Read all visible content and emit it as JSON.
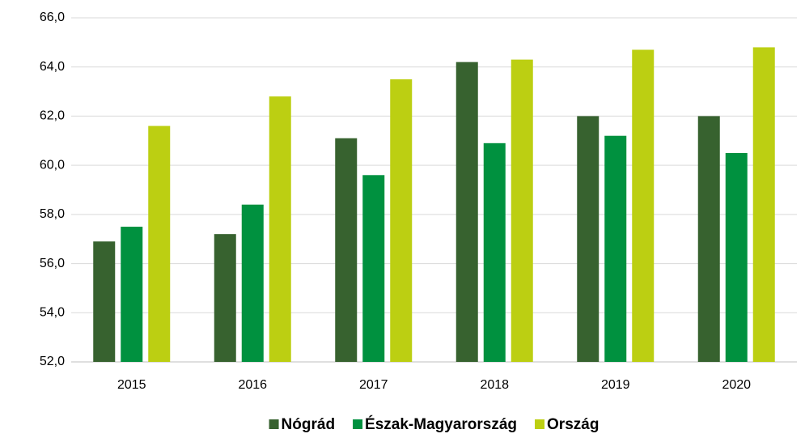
{
  "chart_data": {
    "type": "bar",
    "categories": [
      "2015",
      "2016",
      "2017",
      "2018",
      "2019",
      "2020"
    ],
    "series": [
      {
        "name": "Nógrád",
        "color": "#37622f",
        "values": [
          56.9,
          57.2,
          61.1,
          64.2,
          62.0,
          62.0
        ]
      },
      {
        "name": "Észak-Magyarország",
        "color": "#00913f",
        "values": [
          57.5,
          58.4,
          59.6,
          60.9,
          61.2,
          60.5
        ]
      },
      {
        "name": "Ország",
        "color": "#bccf12",
        "values": [
          61.6,
          62.8,
          63.5,
          64.3,
          64.7,
          64.8
        ]
      }
    ],
    "ylim": [
      52,
      66
    ],
    "yticks": [
      {
        "value": 52,
        "label": "52,0"
      },
      {
        "value": 54,
        "label": "54,0"
      },
      {
        "value": 56,
        "label": "56,0"
      },
      {
        "value": 58,
        "label": "58,0"
      },
      {
        "value": 60,
        "label": "60,0"
      },
      {
        "value": 62,
        "label": "62,0"
      },
      {
        "value": 64,
        "label": "64,0"
      },
      {
        "value": 66,
        "label": "66,0"
      }
    ],
    "grid": true,
    "legend": "bottom"
  }
}
